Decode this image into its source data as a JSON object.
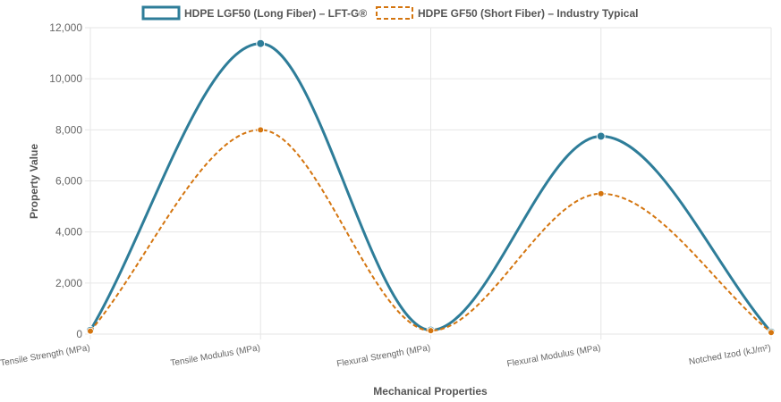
{
  "chart_data": {
    "type": "line",
    "title": "",
    "xlabel": "Mechanical Properties",
    "ylabel": "Property Value",
    "categories": [
      "Tensile Strength (MPa)",
      "Tensile Modulus (MPa)",
      "Flexural Strength (MPa)",
      "Flexural Modulus (MPa)",
      "Notched Izod (kJ/m²)"
    ],
    "ylim": [
      0,
      12000
    ],
    "yticks": [
      0,
      2000,
      4000,
      6000,
      8000,
      10000,
      12000
    ],
    "ytick_labels": [
      "0",
      "2,000",
      "4,000",
      "6,000",
      "8,000",
      "10,000",
      "12,000"
    ],
    "grid": true,
    "legend_position": "top",
    "series": [
      {
        "name": "HDPE LGF50 (Long Fiber) – LFT-G®",
        "values": [
          145,
          11380,
          155,
          7750,
          80
        ],
        "color": "#2e7d99",
        "dash": "solid"
      },
      {
        "name": "HDPE GF50 (Short Fiber) – Industry Typical",
        "values": [
          120,
          8000,
          135,
          5500,
          60
        ],
        "color": "#d4750f",
        "dash": "dashed"
      }
    ]
  }
}
